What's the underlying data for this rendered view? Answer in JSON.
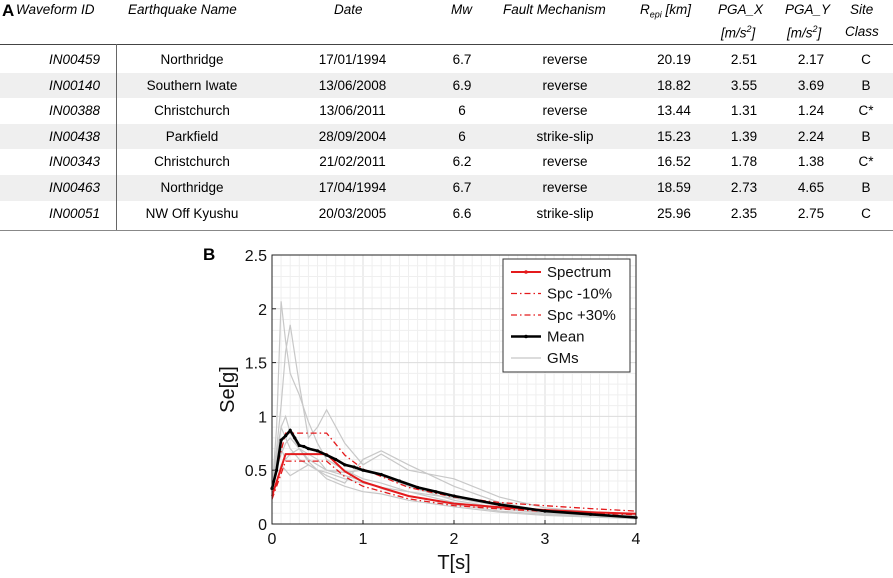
{
  "panel_a_label": "A",
  "panel_b_label": "B",
  "table": {
    "headers": {
      "waveform_id": "Waveform ID",
      "earthquake_name": "Earthquake Name",
      "date": "Date",
      "mw": "Mw",
      "fault_mechanism": "Fault Mechanism",
      "repi_r": "R",
      "repi_sub": "epi",
      "repi_unit": " [km]",
      "pga_x": "PGA_X",
      "pga_x_unit_a": "[m/s",
      "pga_x_unit_sup": "2",
      "pga_x_unit_b": "]",
      "pga_y": "PGA_Y",
      "pga_y_unit_a": "[m/s",
      "pga_y_unit_sup": "2",
      "pga_y_unit_b": "]",
      "site": "Site",
      "site_class": "Class"
    },
    "rows": [
      {
        "id": "IN00459",
        "name": "Northridge",
        "date": "17/01/1994",
        "mw": "6.7",
        "fault": "reverse",
        "repi": "20.19",
        "pgax": "2.51",
        "pgay": "2.17",
        "site": "C"
      },
      {
        "id": "IN00140",
        "name": "Southern Iwate",
        "date": "13/06/2008",
        "mw": "6.9",
        "fault": "reverse",
        "repi": "18.82",
        "pgax": "3.55",
        "pgay": "3.69",
        "site": "B"
      },
      {
        "id": "IN00388",
        "name": "Christchurch",
        "date": "13/06/2011",
        "mw": "6",
        "fault": "reverse",
        "repi": "13.44",
        "pgax": "1.31",
        "pgay": "1.24",
        "site": "C*"
      },
      {
        "id": "IN00438",
        "name": "Parkfield",
        "date": "28/09/2004",
        "mw": "6",
        "fault": "strike-slip",
        "repi": "15.23",
        "pgax": "1.39",
        "pgay": "2.24",
        "site": "B"
      },
      {
        "id": "IN00343",
        "name": "Christchurch",
        "date": "21/02/2011",
        "mw": "6.2",
        "fault": "reverse",
        "repi": "16.52",
        "pgax": "1.78",
        "pgay": "1.38",
        "site": "C*"
      },
      {
        "id": "IN00463",
        "name": "Northridge",
        "date": "17/04/1994",
        "mw": "6.7",
        "fault": "reverse",
        "repi": "18.59",
        "pgax": "2.73",
        "pgay": "4.65",
        "site": "B"
      },
      {
        "id": "IN00051",
        "name": "NW Off Kyushu",
        "date": "20/03/2005",
        "mw": "6.6",
        "fault": "strike-slip",
        "repi": "25.96",
        "pgax": "2.35",
        "pgay": "2.75",
        "site": "C"
      }
    ]
  },
  "chart_data": {
    "type": "line",
    "xlabel": "T[s]",
    "ylabel": "Se[g]",
    "xlim": [
      0,
      4
    ],
    "ylim": [
      0,
      2.5
    ],
    "xticks": [
      "0",
      "1",
      "2",
      "3",
      "4"
    ],
    "yticks": [
      "0",
      "0.5",
      "1",
      "1.5",
      "2",
      "2.5"
    ],
    "grid": true,
    "legend_position": "top-right",
    "legend": [
      "Spectrum",
      "Spc -10%",
      "Spc +30%",
      "Mean",
      "GMs"
    ],
    "colors": {
      "spectrum": "#e41a1c",
      "mean": "#000000",
      "gms": "#c8c8c8"
    },
    "series": [
      {
        "name": "Spectrum",
        "style": "solid-red",
        "x": [
          0,
          0.15,
          0.6,
          0.8,
          1.0,
          1.5,
          2.0,
          2.5,
          3.0,
          3.5,
          4.0
        ],
        "y": [
          0.26,
          0.65,
          0.65,
          0.49,
          0.39,
          0.26,
          0.19,
          0.155,
          0.13,
          0.11,
          0.095
        ]
      },
      {
        "name": "Spc -10%",
        "style": "dashdot-red",
        "x": [
          0,
          0.15,
          0.6,
          0.8,
          1.0,
          1.5,
          2.0,
          2.5,
          3.0,
          3.5,
          4.0
        ],
        "y": [
          0.23,
          0.585,
          0.585,
          0.44,
          0.35,
          0.234,
          0.171,
          0.14,
          0.117,
          0.099,
          0.086
        ]
      },
      {
        "name": "Spc +30%",
        "style": "dashdot-red",
        "x": [
          0,
          0.15,
          0.6,
          0.8,
          1.0,
          1.5,
          2.0,
          2.5,
          3.0,
          3.5,
          4.0
        ],
        "y": [
          0.34,
          0.845,
          0.845,
          0.64,
          0.51,
          0.34,
          0.25,
          0.2,
          0.17,
          0.143,
          0.12
        ]
      },
      {
        "name": "Mean",
        "style": "solid-black-markers",
        "x": [
          0,
          0.05,
          0.1,
          0.15,
          0.2,
          0.25,
          0.3,
          0.35,
          0.4,
          0.5,
          0.6,
          0.7,
          0.8,
          0.9,
          1.0,
          1.2,
          1.4,
          1.6,
          1.8,
          2.0,
          2.5,
          3.0,
          3.5,
          4.0
        ],
        "y": [
          0.33,
          0.5,
          0.78,
          0.82,
          0.87,
          0.8,
          0.73,
          0.72,
          0.7,
          0.68,
          0.64,
          0.6,
          0.55,
          0.53,
          0.5,
          0.46,
          0.4,
          0.34,
          0.3,
          0.26,
          0.18,
          0.12,
          0.09,
          0.06
        ]
      },
      {
        "name": "GM 1",
        "style": "gm",
        "x": [
          0,
          0.05,
          0.1,
          0.15,
          0.2,
          0.3,
          0.4,
          0.5,
          0.6,
          0.8,
          1.0,
          1.2,
          1.5,
          2.0,
          2.5,
          3.0,
          4.0
        ],
        "y": [
          0.3,
          0.9,
          2.07,
          1.7,
          1.4,
          1.2,
          0.95,
          0.75,
          0.6,
          0.5,
          0.42,
          0.38,
          0.3,
          0.2,
          0.14,
          0.1,
          0.06
        ]
      },
      {
        "name": "GM 2",
        "style": "gm",
        "x": [
          0,
          0.05,
          0.1,
          0.15,
          0.2,
          0.3,
          0.4,
          0.5,
          0.6,
          0.8,
          1.0,
          1.2,
          1.5,
          2.0,
          2.5,
          3.0,
          4.0
        ],
        "y": [
          0.35,
          0.7,
          1.1,
          1.6,
          1.85,
          1.3,
          0.8,
          0.9,
          1.06,
          0.75,
          0.55,
          0.65,
          0.5,
          0.42,
          0.25,
          0.15,
          0.08
        ]
      },
      {
        "name": "GM 3",
        "style": "gm",
        "x": [
          0,
          0.05,
          0.1,
          0.15,
          0.2,
          0.3,
          0.4,
          0.5,
          0.6,
          0.8,
          1.0,
          1.2,
          1.5,
          2.0,
          2.5,
          3.0,
          4.0
        ],
        "y": [
          0.28,
          0.55,
          0.7,
          0.6,
          0.65,
          0.7,
          0.58,
          0.5,
          0.45,
          0.38,
          0.6,
          0.68,
          0.55,
          0.35,
          0.2,
          0.12,
          0.07
        ]
      },
      {
        "name": "GM 4",
        "style": "gm",
        "x": [
          0,
          0.05,
          0.1,
          0.15,
          0.2,
          0.3,
          0.4,
          0.5,
          0.6,
          0.8,
          1.0,
          1.2,
          1.5,
          2.0,
          2.5,
          3.0,
          4.0
        ],
        "y": [
          0.25,
          0.4,
          0.55,
          0.5,
          0.45,
          0.5,
          0.55,
          0.5,
          0.42,
          0.35,
          0.3,
          0.28,
          0.22,
          0.16,
          0.11,
          0.08,
          0.05
        ]
      },
      {
        "name": "GM 5",
        "style": "gm",
        "x": [
          0,
          0.05,
          0.1,
          0.15,
          0.2,
          0.3,
          0.4,
          0.5,
          0.6,
          0.8,
          1.0,
          1.2,
          1.5,
          2.0,
          2.5,
          3.0,
          4.0
        ],
        "y": [
          0.32,
          0.6,
          0.9,
          1.0,
          0.85,
          0.7,
          0.65,
          0.6,
          0.5,
          0.48,
          0.5,
          0.45,
          0.35,
          0.22,
          0.15,
          0.1,
          0.06
        ]
      },
      {
        "name": "GM 6",
        "style": "gm",
        "x": [
          0,
          0.05,
          0.1,
          0.15,
          0.2,
          0.3,
          0.4,
          0.5,
          0.6,
          0.8,
          1.0,
          1.2,
          1.5,
          2.0,
          2.5,
          3.0,
          4.0
        ],
        "y": [
          0.3,
          0.5,
          0.65,
          0.75,
          0.8,
          0.7,
          0.6,
          0.55,
          0.5,
          0.45,
          0.4,
          0.33,
          0.26,
          0.18,
          0.12,
          0.09,
          0.05
        ]
      },
      {
        "name": "GM 7",
        "style": "gm",
        "x": [
          0,
          0.05,
          0.1,
          0.15,
          0.2,
          0.3,
          0.4,
          0.5,
          0.6,
          0.8,
          1.0,
          1.2,
          1.5,
          2.0,
          2.5,
          3.0,
          4.0
        ],
        "y": [
          0.38,
          0.65,
          0.9,
          0.8,
          0.7,
          0.6,
          0.55,
          0.5,
          0.48,
          0.42,
          0.38,
          0.34,
          0.3,
          0.24,
          0.17,
          0.12,
          0.07
        ]
      }
    ]
  }
}
